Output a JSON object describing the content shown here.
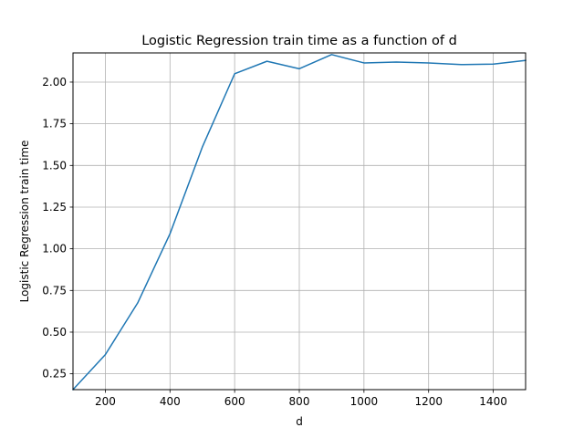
{
  "chart_data": {
    "type": "line",
    "title": "Logistic Regression train time as a function of d",
    "xlabel": "d",
    "ylabel": "Logistic Regression train time",
    "xlim": [
      100,
      1500
    ],
    "ylim": [
      0.155,
      2.175
    ],
    "grid": true,
    "x_ticks": [
      200,
      400,
      600,
      800,
      1000,
      1200,
      1400
    ],
    "y_ticks": [
      0.25,
      0.5,
      0.75,
      1.0,
      1.25,
      1.5,
      1.75,
      2.0
    ],
    "x_tick_labels": [
      "200",
      "400",
      "600",
      "800",
      "1000",
      "1200",
      "1400"
    ],
    "y_tick_labels": [
      "0.25",
      "0.50",
      "0.75",
      "1.00",
      "1.25",
      "1.50",
      "1.75",
      "2.00"
    ],
    "colors": {
      "line": "#1f77b4",
      "grid": "#b0b0b0",
      "axes": "#000000"
    },
    "series": [
      {
        "x": [
          100,
          200,
          300,
          400,
          500,
          600,
          700,
          800,
          900,
          1000,
          1100,
          1200,
          1300,
          1400,
          1500
        ],
        "values": [
          0.155,
          0.365,
          0.675,
          1.09,
          1.61,
          2.05,
          2.125,
          2.08,
          2.165,
          2.115,
          2.12,
          2.115,
          2.105,
          2.108,
          2.13
        ]
      }
    ]
  }
}
